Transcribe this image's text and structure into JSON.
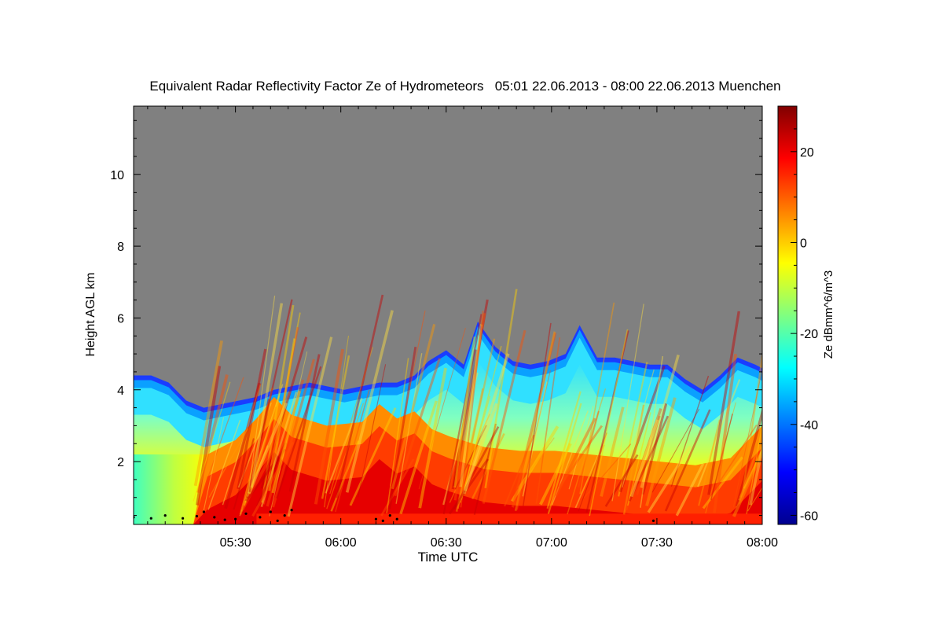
{
  "chart_data": {
    "type": "heatmap",
    "title": "Equivalent Radar Reflectivity Factor Ze of Hydrometeors   05:01 22.06.2013 - 08:00 22.06.2013 Muenchen",
    "xlabel": "Time UTC",
    "ylabel": "Height AGL km",
    "colorbar_label": "Ze dBmm^6/m^3",
    "x_range_minutes": [
      301,
      480
    ],
    "y_range_km": [
      0.25,
      11.9
    ],
    "x_ticks": [
      {
        "minute": 330,
        "label": "05:30"
      },
      {
        "minute": 360,
        "label": "06:00"
      },
      {
        "minute": 390,
        "label": "06:30"
      },
      {
        "minute": 420,
        "label": "07:00"
      },
      {
        "minute": 450,
        "label": "07:30"
      },
      {
        "minute": 480,
        "label": "08:00"
      }
    ],
    "y_ticks": [
      {
        "value": 2,
        "label": "2"
      },
      {
        "value": 4,
        "label": "4"
      },
      {
        "value": 6,
        "label": "6"
      },
      {
        "value": 8,
        "label": "8"
      },
      {
        "value": 10,
        "label": "10"
      }
    ],
    "colorbar_range": [
      -62,
      30
    ],
    "colorbar_ticks": [
      {
        "value": -60,
        "label": "-60"
      },
      {
        "value": -40,
        "label": "-40"
      },
      {
        "value": -20,
        "label": "-20"
      },
      {
        "value": 0,
        "label": "0"
      },
      {
        "value": 20,
        "label": "20"
      }
    ],
    "colormap": [
      "#00008f",
      "#0000ff",
      "#0080ff",
      "#00ffff",
      "#80ff80",
      "#ffff00",
      "#ff8000",
      "#ff0000",
      "#800000"
    ],
    "no_signal_color": "#808080",
    "cloud_top_km": [
      {
        "minute": 301,
        "top": 4.4
      },
      {
        "minute": 306,
        "top": 4.4
      },
      {
        "minute": 311,
        "top": 4.2
      },
      {
        "minute": 316,
        "top": 3.7
      },
      {
        "minute": 321,
        "top": 3.5
      },
      {
        "minute": 326,
        "top": 3.6
      },
      {
        "minute": 331,
        "top": 3.7
      },
      {
        "minute": 336,
        "top": 3.8
      },
      {
        "minute": 341,
        "top": 4.0
      },
      {
        "minute": 346,
        "top": 4.1
      },
      {
        "minute": 351,
        "top": 4.2
      },
      {
        "minute": 356,
        "top": 4.1
      },
      {
        "minute": 361,
        "top": 4.0
      },
      {
        "minute": 366,
        "top": 4.1
      },
      {
        "minute": 371,
        "top": 4.2
      },
      {
        "minute": 376,
        "top": 4.2
      },
      {
        "minute": 381,
        "top": 4.4
      },
      {
        "minute": 385,
        "top": 4.8
      },
      {
        "minute": 390,
        "top": 5.1
      },
      {
        "minute": 395,
        "top": 4.7
      },
      {
        "minute": 399,
        "top": 5.9
      },
      {
        "minute": 404,
        "top": 5.2
      },
      {
        "minute": 409,
        "top": 4.8
      },
      {
        "minute": 414,
        "top": 4.7
      },
      {
        "minute": 419,
        "top": 4.8
      },
      {
        "minute": 424,
        "top": 5.0
      },
      {
        "minute": 428,
        "top": 5.8
      },
      {
        "minute": 433,
        "top": 4.9
      },
      {
        "minute": 438,
        "top": 4.9
      },
      {
        "minute": 443,
        "top": 4.8
      },
      {
        "minute": 448,
        "top": 4.7
      },
      {
        "minute": 453,
        "top": 4.7
      },
      {
        "minute": 458,
        "top": 4.3
      },
      {
        "minute": 463,
        "top": 4.0
      },
      {
        "minute": 468,
        "top": 4.4
      },
      {
        "minute": 473,
        "top": 4.9
      },
      {
        "minute": 478,
        "top": 4.7
      },
      {
        "minute": 480,
        "top": 4.6
      }
    ],
    "core_top_km": [
      {
        "minute": 301,
        "top": 0.0
      },
      {
        "minute": 318,
        "top": 0.0
      },
      {
        "minute": 322,
        "top": 2.2
      },
      {
        "minute": 330,
        "top": 2.6
      },
      {
        "minute": 336,
        "top": 3.2
      },
      {
        "minute": 341,
        "top": 3.8
      },
      {
        "minute": 346,
        "top": 3.3
      },
      {
        "minute": 356,
        "top": 3.0
      },
      {
        "minute": 366,
        "top": 3.1
      },
      {
        "minute": 371,
        "top": 3.6
      },
      {
        "minute": 376,
        "top": 3.2
      },
      {
        "minute": 381,
        "top": 3.4
      },
      {
        "minute": 386,
        "top": 2.9
      },
      {
        "minute": 391,
        "top": 2.7
      },
      {
        "minute": 401,
        "top": 2.4
      },
      {
        "minute": 411,
        "top": 2.3
      },
      {
        "minute": 421,
        "top": 2.3
      },
      {
        "minute": 431,
        "top": 2.2
      },
      {
        "minute": 441,
        "top": 2.1
      },
      {
        "minute": 451,
        "top": 2.0
      },
      {
        "minute": 461,
        "top": 1.9
      },
      {
        "minute": 471,
        "top": 2.1
      },
      {
        "minute": 480,
        "top": 3.0
      }
    ],
    "cloud_base_points_km": [
      {
        "minute": 301,
        "height": 0.45
      },
      {
        "minute": 306,
        "height": 0.42
      },
      {
        "minute": 310,
        "height": 0.5
      },
      {
        "minute": 315,
        "height": 0.42
      },
      {
        "minute": 319,
        "height": 0.48
      },
      {
        "minute": 321,
        "height": 0.6
      },
      {
        "minute": 324,
        "height": 0.45
      },
      {
        "minute": 327,
        "height": 0.38
      },
      {
        "minute": 330,
        "height": 0.4
      },
      {
        "minute": 333,
        "height": 0.55
      },
      {
        "minute": 337,
        "height": 0.45
      },
      {
        "minute": 340,
        "height": 0.6
      },
      {
        "minute": 342,
        "height": 0.35
      },
      {
        "minute": 344,
        "height": 0.5
      },
      {
        "minute": 346,
        "height": 0.65
      },
      {
        "minute": 370,
        "height": 0.4
      },
      {
        "minute": 372,
        "height": 0.35
      },
      {
        "minute": 374,
        "height": 0.5
      },
      {
        "minute": 376,
        "height": 0.4
      },
      {
        "minute": 449,
        "height": 0.35
      }
    ]
  }
}
